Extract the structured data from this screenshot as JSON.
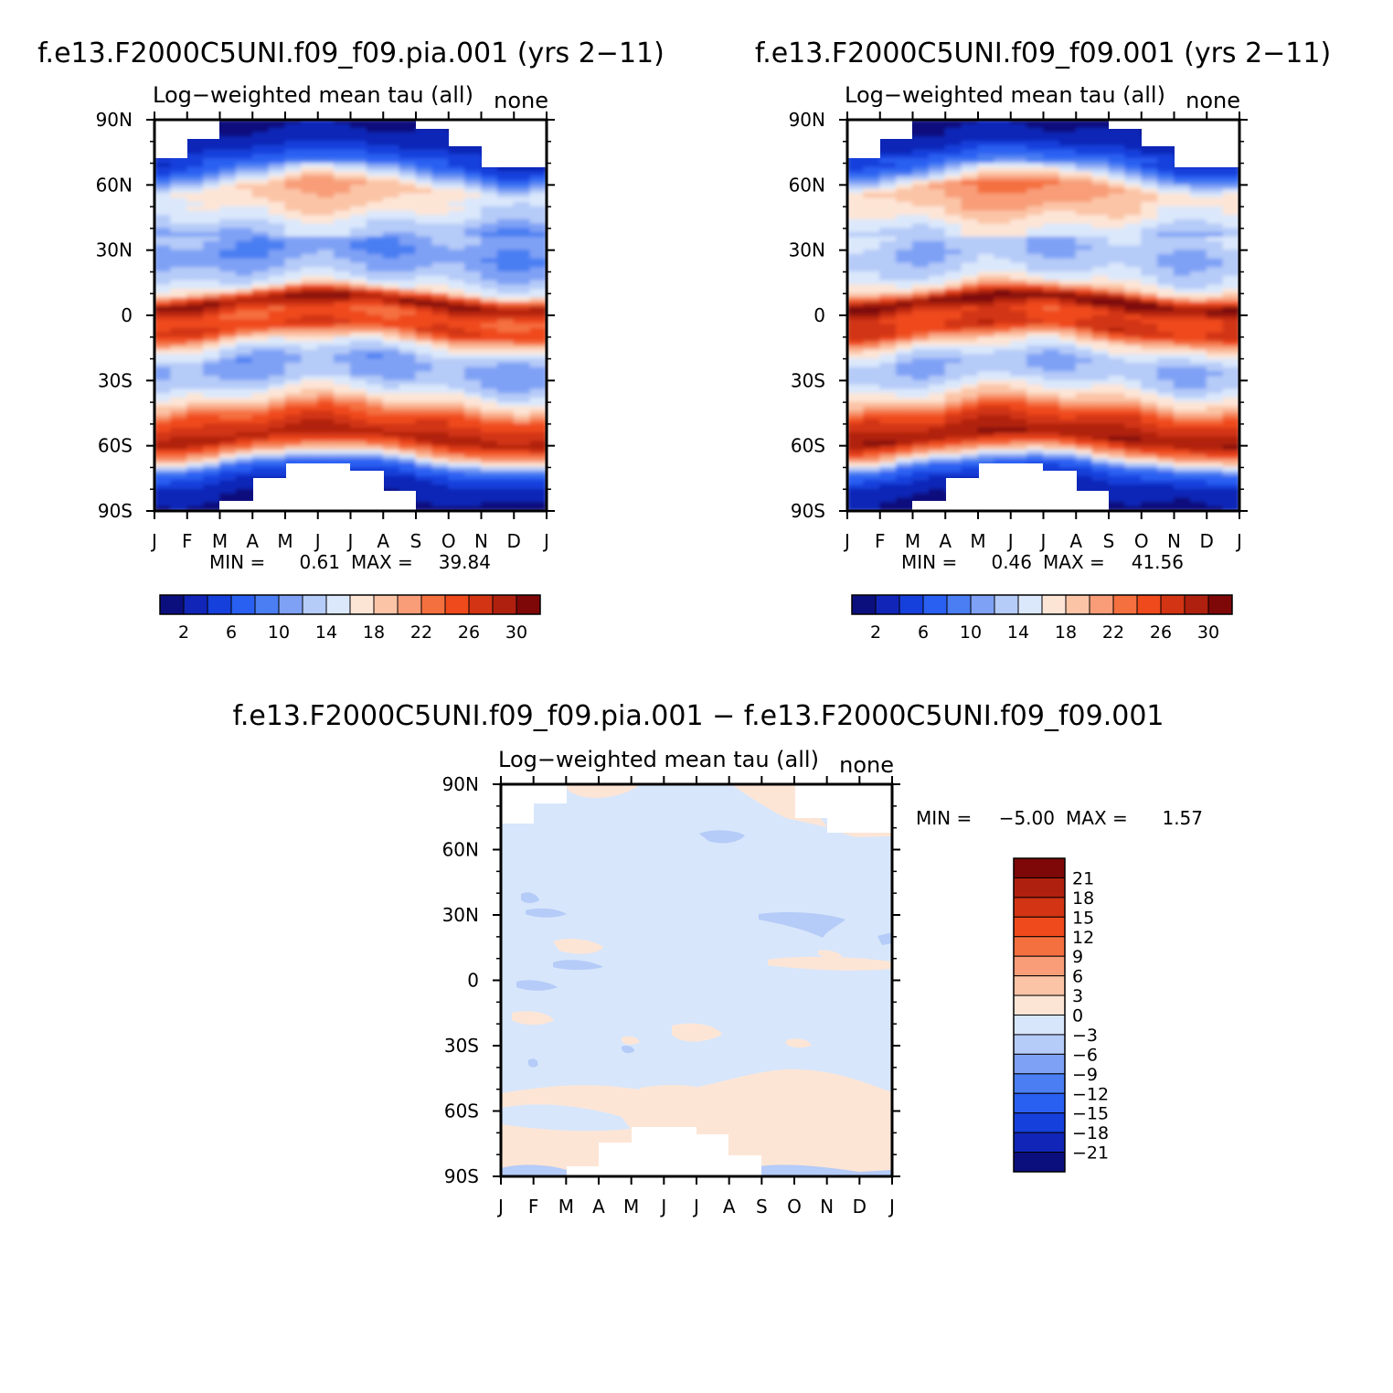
{
  "palette": [
    "#0b0f7d",
    "#1126b8",
    "#1640dc",
    "#2a60f2",
    "#4a7ef2",
    "#7fa1f5",
    "#b5cbf8",
    "#dbe8fb",
    "#fde5d6",
    "#fbc4a6",
    "#f89d78",
    "#f5703f",
    "#ef4a1c",
    "#d23414",
    "#b0200e",
    "#7e0808"
  ],
  "diff_palette": [
    "#0b0f7d",
    "#1126b8",
    "#1640dc",
    "#2a60f2",
    "#4a7ef2",
    "#7fa1f5",
    "#b5cbf8",
    "#d7e6fb",
    "#fde5d6",
    "#fbc4a6",
    "#f89d78",
    "#f5703f",
    "#ef4a1c",
    "#d23414",
    "#b0200e",
    "#7e0808"
  ],
  "chart_data": [
    {
      "type": "heatmap",
      "title": "f.e13.F2000C5UNI.f09_f09.pia.001 (yrs 2−11)",
      "subtitle_left": "Log−weighted mean tau (all)",
      "subtitle_right": "none",
      "x_ticks": [
        "J",
        "F",
        "M",
        "A",
        "M",
        "J",
        "J",
        "A",
        "S",
        "O",
        "N",
        "D",
        "J"
      ],
      "y_ticks": [
        "90N",
        "60N",
        "30N",
        "0",
        "30S",
        "60S",
        "90S"
      ],
      "ylim": [
        -90,
        90
      ],
      "min_label": "MIN =",
      "min_value": "0.61",
      "max_label": "MAX =",
      "max_value": "39.84",
      "colorbar_ticks": [
        "2",
        "6",
        "10",
        "14",
        "18",
        "22",
        "26",
        "30"
      ],
      "contour_levels": [
        2,
        4,
        6,
        8,
        10,
        12,
        14,
        16,
        18,
        20,
        22,
        24,
        26,
        28,
        30
      ],
      "zonal_profile_lat": [
        -90,
        -78,
        -70,
        -64,
        -57,
        -52,
        -46,
        -40,
        -30,
        -22,
        -14,
        -7,
        0,
        6,
        12,
        18,
        28,
        38,
        48,
        58,
        68,
        78,
        90
      ],
      "zonal_profile_value": [
        1,
        3,
        8,
        20,
        29,
        27,
        24,
        18,
        12,
        11,
        16,
        26,
        24,
        31,
        16,
        13,
        10,
        12,
        16,
        18,
        8,
        3,
        1
      ]
    },
    {
      "type": "heatmap",
      "title": "f.e13.F2000C5UNI.f09_f09.001 (yrs 2−11)",
      "subtitle_left": "Log−weighted mean tau (all)",
      "subtitle_right": "none",
      "x_ticks": [
        "J",
        "F",
        "M",
        "A",
        "M",
        "J",
        "J",
        "A",
        "S",
        "O",
        "N",
        "D",
        "J"
      ],
      "y_ticks": [
        "90N",
        "60N",
        "30N",
        "0",
        "30S",
        "60S",
        "90S"
      ],
      "ylim": [
        -90,
        90
      ],
      "min_label": "MIN =",
      "min_value": "0.46",
      "max_label": "MAX =",
      "max_value": "41.56",
      "colorbar_ticks": [
        "2",
        "6",
        "10",
        "14",
        "18",
        "22",
        "26",
        "30"
      ],
      "contour_levels": [
        2,
        4,
        6,
        8,
        10,
        12,
        14,
        16,
        18,
        20,
        22,
        24,
        26,
        28,
        30
      ],
      "zonal_profile_lat": [
        -90,
        -78,
        -70,
        -64,
        -57,
        -52,
        -46,
        -40,
        -30,
        -22,
        -14,
        -7,
        0,
        6,
        12,
        18,
        28,
        38,
        48,
        58,
        68,
        78,
        90
      ],
      "zonal_profile_value": [
        1,
        3,
        8,
        20,
        30,
        28,
        25,
        19,
        13,
        12,
        17,
        27,
        25,
        32,
        18,
        14,
        12,
        14,
        18,
        20,
        9,
        3,
        1
      ]
    },
    {
      "type": "heatmap",
      "title": "f.e13.F2000C5UNI.f09_f09.pia.001 − f.e13.F2000C5UNI.f09_f09.001",
      "subtitle_left": "Log−weighted mean tau (all)",
      "subtitle_right": "none",
      "x_ticks": [
        "J",
        "F",
        "M",
        "A",
        "M",
        "J",
        "J",
        "A",
        "S",
        "O",
        "N",
        "D",
        "J"
      ],
      "y_ticks": [
        "90N",
        "60N",
        "30N",
        "0",
        "30S",
        "60S",
        "90S"
      ],
      "ylim": [
        -90,
        90
      ],
      "min_label": "MIN =",
      "min_value": "−5.00",
      "max_label": "MAX =",
      "max_value": "1.57",
      "colorbar_ticks": [
        "21",
        "18",
        "15",
        "12",
        "9",
        "6",
        "3",
        "0",
        "−3",
        "−6",
        "−9",
        "−12",
        "−15",
        "−18",
        "−21"
      ],
      "contour_levels": [
        -21,
        -18,
        -15,
        -12,
        -9,
        -6,
        -3,
        0,
        3,
        6,
        9,
        12,
        15,
        18,
        21
      ],
      "dominant_range": [
        -3,
        3
      ]
    }
  ]
}
